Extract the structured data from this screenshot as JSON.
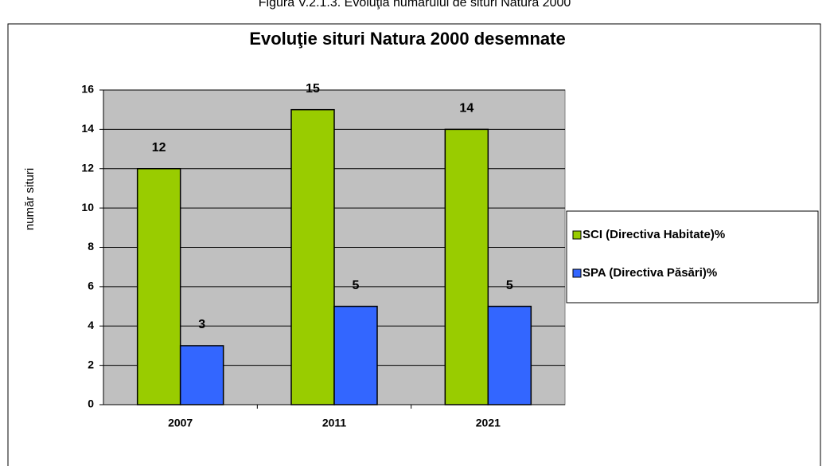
{
  "caption": "Figura V.2.1.3. Evoluţia numărului de situri Natura 2000",
  "chart_data": {
    "type": "bar",
    "title": "Evoluţie situri Natura 2000 desemnate",
    "y_label": "număr situri",
    "categories": [
      "2007",
      "2011",
      "2021"
    ],
    "series": [
      {
        "name": "SCI (Directiva Habitate)%",
        "color": "#99cc00",
        "values": [
          12,
          15,
          14
        ]
      },
      {
        "name": "SPA (Directiva Păsări)%",
        "color": "#3366ff",
        "values": [
          3,
          5,
          5
        ]
      }
    ],
    "ylim": [
      0,
      16
    ],
    "yticks": [
      0,
      2,
      4,
      6,
      8,
      10,
      12,
      14,
      16
    ],
    "grid": true,
    "plot_background": "#c0c0c0",
    "legend": "right"
  }
}
